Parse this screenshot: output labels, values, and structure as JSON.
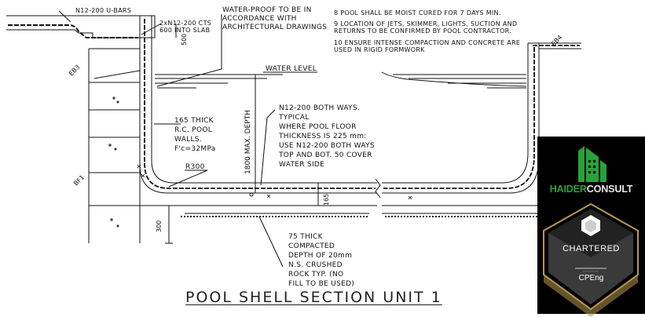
{
  "title": "POOL SHELL SECTION UNIT 1",
  "labels": {
    "top_bars": "N12-200 U-BARS",
    "cts_line1": "2xN12-200 CTS",
    "cts_line2": "600 INTO SLAB",
    "dim_500": "500",
    "waterproof": [
      "WATER-PROOF TO BE IN",
      "ACCORDANCE WITH",
      "ARCHITECTURAL DRAWINGS"
    ],
    "water_level": "WATER LEVEL",
    "walls": [
      "165 THICK",
      "R.C. POOL",
      "WALLS.",
      "F'c=32MPa"
    ],
    "floor": [
      "N12-200 BOTH WAYS.",
      "TYPICAL",
      "WHERE POOL FLOOR",
      "THICKNESS IS 225 mm:",
      "USE N12-200 BOTH WAYS",
      "TOP AND BOT. 50 COVER",
      "WATER SIDE"
    ],
    "radius": "R300",
    "depth": "1800 MAX. DEPTH",
    "dim_165": "165",
    "dim_300": "300",
    "crushed_rock": [
      "75 THICK",
      "COMPACTED",
      "DEPTH OF 20mm",
      "N.S. CRUSHED",
      "ROCK TYP. (NO",
      "FILL TO BE USED)"
    ],
    "eb3": "EB3",
    "eb4": "EB4",
    "bf1": "BF1"
  },
  "notes": [
    "8 POOL SHALL BE MOIST CURED FOR 7 DAYS MIN.",
    "9 LOCATION OF JETS, SKIMMER, LIGHTS, SUCTION AND",
    "   RETURNS TO BE CONFIRMED BY POOL CONTRACTOR.",
    "10 ENSURE INTENSE COMPACTION AND CONCRETE ARE",
    "    USED IN RIGID FORMWORK"
  ],
  "badge": {
    "brand_a": "HAIDER",
    "brand_b": "CONSULT",
    "chartered": "CHARTERED",
    "cpeng": "CPEng",
    "brand_color": "#2aa13a",
    "gold": "#b8974f"
  }
}
